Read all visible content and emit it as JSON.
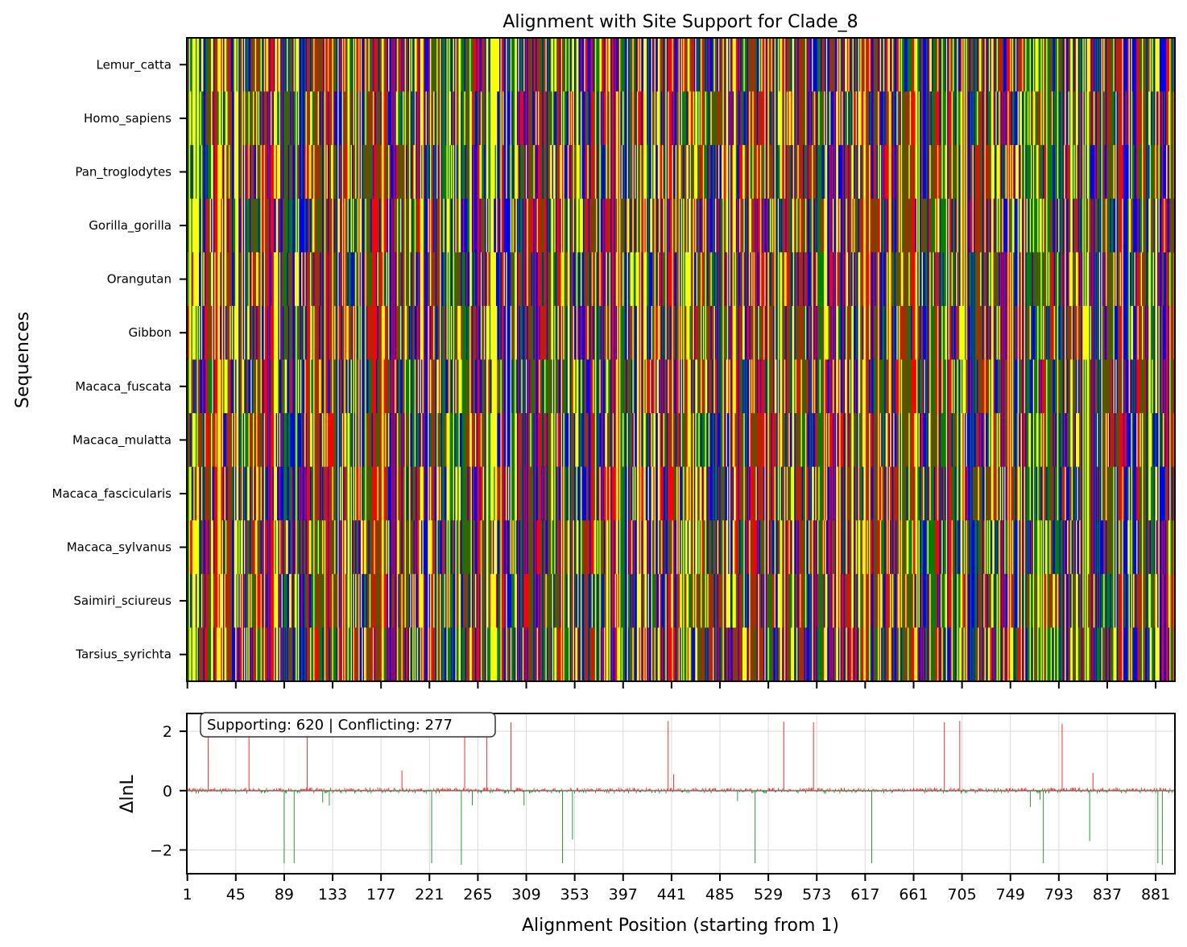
{
  "chart_data": [
    {
      "type": "heatmap",
      "title": "Alignment with Site Support for Clade_8",
      "ylabel": "Sequences",
      "sequences": [
        "Lemur_catta",
        "Homo_sapiens",
        "Pan_troglodytes",
        "Gorilla_gorilla",
        "Orangutan",
        "Gibbon",
        "Macaca_fuscata",
        "Macaca_mulatta",
        "Macaca_fascicularis",
        "Macaca_sylvanus",
        "Saimiri_sciureus",
        "Tarsius_syrichta"
      ],
      "x_range": [
        1,
        898
      ],
      "nucleotide_colors": {
        "A": "#ff0000",
        "C": "#0000ff",
        "G": "#ffff00",
        "T": "#008000"
      },
      "note_pattern": "random"
    },
    {
      "type": "bar",
      "xlabel": "Alignment Position (starting from 1)",
      "ylabel": "ΔlnL",
      "x_range": [
        1,
        898
      ],
      "ylim": [
        -2.8,
        2.6
      ],
      "xticks": [
        1,
        45,
        89,
        133,
        177,
        221,
        265,
        309,
        353,
        397,
        441,
        485,
        529,
        573,
        617,
        661,
        705,
        749,
        793,
        837,
        881
      ],
      "yticks": [
        {
          "value": 2,
          "label": "2"
        },
        {
          "value": 0,
          "label": "0"
        },
        {
          "value": -2,
          "label": "−2"
        }
      ],
      "grid": true,
      "legend_text": "Supporting: 620 | Conflicting: 277",
      "legend_position": "top-left",
      "supporting_color": "#ff0000",
      "conflicting_color": "#008000",
      "tall_spikes": [
        {
          "x": 20,
          "y": 1.8
        },
        {
          "x": 57,
          "y": 1.8
        },
        {
          "x": 110,
          "y": 1.8
        },
        {
          "x": 196,
          "y": 0.68
        },
        {
          "x": 253,
          "y": 1.8
        },
        {
          "x": 273,
          "y": 1.8
        },
        {
          "x": 295,
          "y": 2.3
        },
        {
          "x": 438,
          "y": 2.35
        },
        {
          "x": 443,
          "y": 0.55
        },
        {
          "x": 543,
          "y": 2.32
        },
        {
          "x": 570,
          "y": 2.3
        },
        {
          "x": 689,
          "y": 2.3
        },
        {
          "x": 703,
          "y": 2.35
        },
        {
          "x": 796,
          "y": 2.25
        },
        {
          "x": 824,
          "y": 0.6
        },
        {
          "x": 89,
          "y": -2.45
        },
        {
          "x": 98,
          "y": -2.45
        },
        {
          "x": 124,
          "y": -0.4
        },
        {
          "x": 130,
          "y": -0.5
        },
        {
          "x": 223,
          "y": -2.45
        },
        {
          "x": 250,
          "y": -2.5
        },
        {
          "x": 260,
          "y": -0.5
        },
        {
          "x": 307,
          "y": -0.5
        },
        {
          "x": 342,
          "y": -2.45
        },
        {
          "x": 351,
          "y": -1.65
        },
        {
          "x": 501,
          "y": -0.35
        },
        {
          "x": 517,
          "y": -2.45
        },
        {
          "x": 623,
          "y": -2.45
        },
        {
          "x": 767,
          "y": -0.55
        },
        {
          "x": 776,
          "y": -0.3
        },
        {
          "x": 779,
          "y": -2.45
        },
        {
          "x": 821,
          "y": -1.7
        },
        {
          "x": 883,
          "y": -2.45
        },
        {
          "x": 887,
          "y": -2.5
        }
      ]
    }
  ]
}
